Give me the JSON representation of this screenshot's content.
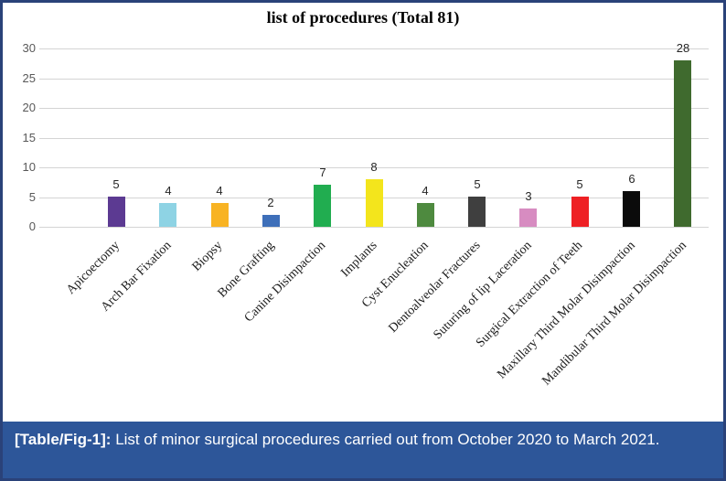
{
  "chart_data": {
    "type": "bar",
    "title": "list of procedures (Total 81)",
    "categories": [
      "Apicoectomy",
      "Arch Bar Fixation",
      "Biopsy",
      "Bone Grafting",
      "Canine Disimpaction",
      "Implants",
      "Cyst Enucleation",
      "Dentoalveolar Fractures",
      "Suturing of lip Laceration",
      "Surgical Extraction of Teeth",
      "Maxillary Third Molar Disimpaction",
      "Mandibular Third Molar Disimpaction"
    ],
    "values": [
      5,
      4,
      4,
      2,
      7,
      8,
      4,
      5,
      3,
      5,
      6,
      28
    ],
    "bar_colors": [
      "#5c3a92",
      "#8ed3e4",
      "#f8b323",
      "#3e6fb9",
      "#21ad50",
      "#f3e51c",
      "#4e8a3f",
      "#3f3f3f",
      "#d78cc1",
      "#ee2024",
      "#0b0b0b",
      "#3f6a2e"
    ],
    "total": 81,
    "xlabel": "",
    "ylabel": "",
    "ylim": [
      0,
      30
    ],
    "yticks": [
      0,
      5,
      10,
      15,
      20,
      25,
      30
    ],
    "grid": true,
    "legend": "none",
    "value_labels_shown": true
  },
  "caption": {
    "label": "[Table/Fig-1]:",
    "text": "List of minor surgical procedures carried out from October 2020 to March 2021."
  },
  "colors": {
    "frame_border": "#2a4279",
    "caption_bg": "#2d5699",
    "gridline": "#d4d4d4",
    "background": "#ffffff"
  }
}
